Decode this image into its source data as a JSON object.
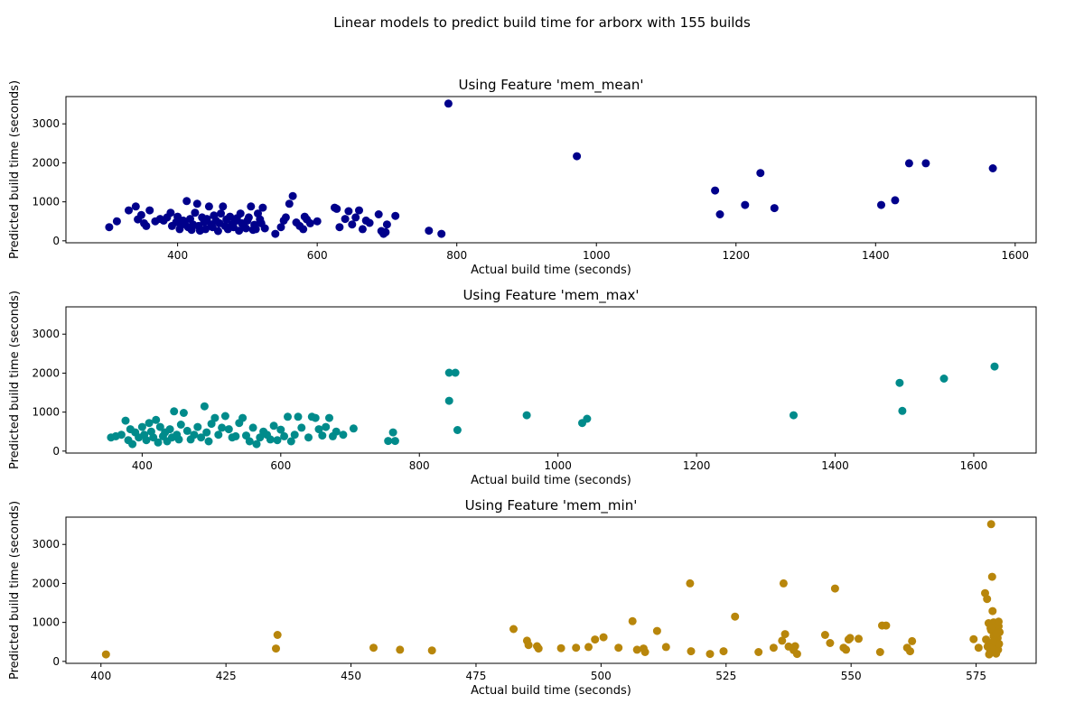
{
  "figure": {
    "suptitle": "Linear models to predict build time for arborx with 155 builds"
  },
  "chart_data": [
    {
      "type": "scatter",
      "title": "Using Feature 'mem_mean'",
      "xlabel": "Actual build time (seconds)",
      "ylabel": "Predicted build time (seconds)",
      "color": "#00008b",
      "xlim": [
        240,
        1630
      ],
      "ylim": [
        -50,
        3700
      ],
      "xticks": [
        400,
        600,
        800,
        1000,
        1200,
        1400,
        1600
      ],
      "xtick_labels": [
        "400",
        "600",
        "800",
        "1000",
        "1200",
        "1400",
        "1600"
      ],
      "yticks": [
        0,
        1000,
        2000,
        3000
      ],
      "ytick_labels": [
        "0",
        "1000",
        "2000",
        "3000"
      ],
      "x": [
        302,
        313,
        330,
        340,
        343,
        348,
        352,
        355,
        360,
        368,
        375,
        380,
        385,
        390,
        392,
        398,
        400,
        403,
        405,
        408,
        410,
        413,
        415,
        418,
        420,
        422,
        425,
        428,
        430,
        432,
        435,
        438,
        440,
        442,
        445,
        448,
        450,
        452,
        455,
        458,
        460,
        462,
        465,
        468,
        470,
        472,
        475,
        478,
        480,
        482,
        485,
        488,
        490,
        492,
        495,
        498,
        500,
        502,
        505,
        508,
        510,
        512,
        515,
        518,
        520,
        522,
        525,
        540,
        548,
        552,
        555,
        560,
        565,
        570,
        575,
        580,
        582,
        585,
        590,
        600,
        625,
        628,
        632,
        640,
        645,
        650,
        655,
        660,
        665,
        670,
        675,
        688,
        692,
        695,
        698,
        700,
        712,
        760,
        778,
        788,
        972,
        1170,
        1177,
        1213,
        1235,
        1255,
        1408,
        1428,
        1448,
        1472,
        1568
      ],
      "y": [
        350,
        500,
        780,
        880,
        550,
        660,
        450,
        380,
        780,
        500,
        560,
        520,
        600,
        720,
        380,
        480,
        620,
        300,
        400,
        520,
        450,
        1020,
        350,
        560,
        280,
        420,
        720,
        950,
        380,
        260,
        600,
        480,
        300,
        560,
        880,
        420,
        350,
        650,
        520,
        250,
        450,
        700,
        880,
        380,
        550,
        300,
        620,
        420,
        350,
        500,
        580,
        260,
        700,
        450,
        380,
        320,
        520,
        600,
        880,
        280,
        410,
        300,
        700,
        550,
        450,
        850,
        320,
        180,
        350,
        520,
        600,
        950,
        1150,
        470,
        380,
        300,
        620,
        550,
        450,
        500,
        850,
        820,
        350,
        560,
        760,
        420,
        600,
        780,
        300,
        520,
        460,
        680,
        250,
        180,
        220,
        420,
        640,
        260,
        180,
        3520,
        2170,
        1290,
        680,
        920,
        1740,
        840,
        920,
        1040,
        1990,
        1990,
        1860
      ]
    },
    {
      "type": "scatter",
      "title": "Using Feature 'mem_max'",
      "xlabel": "Actual build time (seconds)",
      "ylabel": "Predicted build time (seconds)",
      "color": "#008b8b",
      "xlim": [
        290,
        1690
      ],
      "ylim": [
        -50,
        3700
      ],
      "xticks": [
        400,
        600,
        800,
        1000,
        1200,
        1400,
        1600
      ],
      "xtick_labels": [
        "400",
        "600",
        "800",
        "1000",
        "1200",
        "1400",
        "1600"
      ],
      "yticks": [
        0,
        1000,
        2000,
        3000
      ],
      "ytick_labels": [
        "0",
        "1000",
        "2000",
        "3000"
      ],
      "x": [
        355,
        362,
        370,
        376,
        380,
        383,
        386,
        390,
        395,
        400,
        403,
        406,
        410,
        413,
        416,
        420,
        423,
        426,
        430,
        433,
        436,
        440,
        443,
        446,
        450,
        453,
        456,
        460,
        465,
        470,
        475,
        480,
        485,
        490,
        493,
        496,
        500,
        505,
        510,
        515,
        520,
        525,
        530,
        535,
        540,
        545,
        550,
        555,
        560,
        565,
        570,
        575,
        580,
        585,
        590,
        595,
        600,
        605,
        610,
        615,
        620,
        625,
        630,
        640,
        645,
        650,
        655,
        660,
        665,
        670,
        675,
        680,
        690,
        705,
        755,
        762,
        765,
        843,
        843,
        852,
        855,
        955,
        1035,
        1042,
        1340,
        1493,
        1497,
        1557,
        1630
      ],
      "y": [
        350,
        380,
        420,
        780,
        280,
        560,
        180,
        480,
        350,
        620,
        420,
        280,
        720,
        500,
        350,
        800,
        220,
        620,
        380,
        480,
        250,
        560,
        350,
        1020,
        420,
        300,
        680,
        980,
        520,
        300,
        420,
        620,
        350,
        1150,
        480,
        250,
        700,
        850,
        420,
        600,
        900,
        560,
        350,
        380,
        720,
        850,
        400,
        250,
        600,
        180,
        350,
        500,
        420,
        300,
        650,
        280,
        550,
        380,
        880,
        250,
        420,
        880,
        600,
        350,
        880,
        850,
        560,
        400,
        620,
        850,
        380,
        500,
        420,
        580,
        260,
        480,
        260,
        2010,
        1290,
        2010,
        540,
        920,
        720,
        830,
        920,
        1750,
        1030,
        1860,
        2170
      ]
    },
    {
      "type": "scatter",
      "title": "Using Feature 'mem_min'",
      "xlabel": "Actual build time (seconds)",
      "ylabel": "Predicted build time (seconds)",
      "color": "#b8860b",
      "xlim": [
        393,
        587
      ],
      "ylim": [
        -50,
        3700
      ],
      "xticks": [
        400,
        425,
        450,
        475,
        500,
        525,
        550,
        575
      ],
      "xtick_labels": [
        "400",
        "425",
        "450",
        "475",
        "500",
        "525",
        "550",
        "575"
      ],
      "yticks": [
        0,
        1000,
        2000,
        3000
      ],
      "ytick_labels": [
        "0",
        "1000",
        "2000",
        "3000"
      ],
      "x": [
        401,
        435,
        435.3,
        454.5,
        459.8,
        466.2,
        482.5,
        485.2,
        485.5,
        487.2,
        487.5,
        492,
        495,
        497.5,
        498.8,
        500.5,
        503.5,
        506.3,
        507.2,
        508.5,
        508.8,
        511.2,
        513,
        517.8,
        518,
        521.8,
        524.5,
        526.8,
        531.5,
        534.5,
        536.2,
        536.5,
        536.8,
        537.5,
        538.5,
        538.8,
        539.2,
        544.8,
        545.8,
        546.8,
        548.5,
        549,
        549.5,
        549.8,
        551.5,
        555.8,
        556.2,
        557,
        561.2,
        561.8,
        562.2,
        574.5,
        575.5,
        576.8,
        577,
        577.2,
        577.5,
        577.7,
        577.8,
        578,
        578,
        578.2,
        578.3,
        578.5,
        578.5,
        578.7,
        578.8,
        578.9,
        579,
        579,
        579.2,
        579.2,
        579.3,
        579.4,
        579.5,
        579.5,
        579.6,
        579.7,
        577.3,
        578.1,
        578.6,
        577.9,
        578.4,
        579.1,
        578.0,
        577.6
      ],
      "y": [
        180,
        330,
        680,
        350,
        300,
        280,
        830,
        530,
        420,
        390,
        330,
        340,
        350,
        370,
        560,
        620,
        350,
        1030,
        300,
        330,
        240,
        780,
        370,
        2000,
        260,
        190,
        260,
        1150,
        240,
        350,
        530,
        2000,
        700,
        380,
        290,
        390,
        190,
        680,
        470,
        1870,
        350,
        300,
        560,
        600,
        580,
        240,
        920,
        920,
        350,
        260,
        520,
        570,
        350,
        1750,
        560,
        1600,
        980,
        420,
        250,
        800,
        3520,
        2170,
        1290,
        1000,
        650,
        320,
        480,
        880,
        200,
        560,
        700,
        420,
        600,
        300,
        900,
        1020,
        450,
        750,
        380,
        260,
        620,
        850,
        500,
        720,
        340,
        180
      ]
    }
  ]
}
